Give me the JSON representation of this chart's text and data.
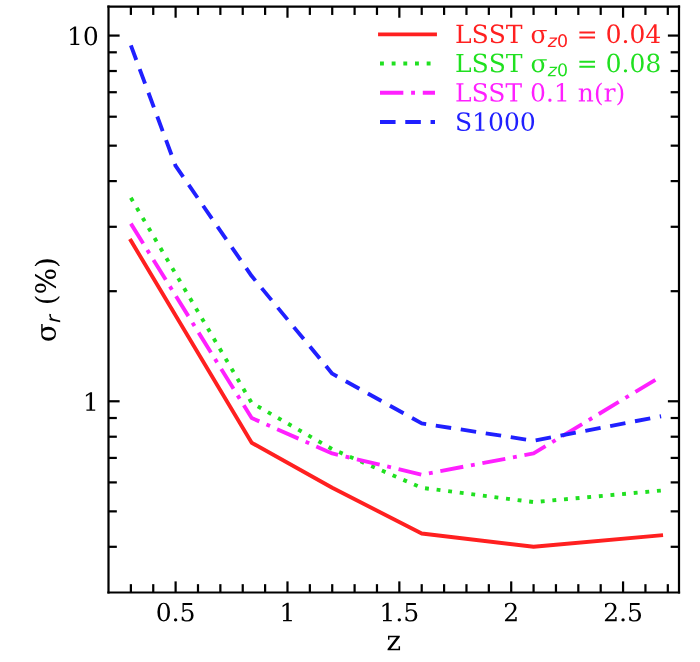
{
  "chart_data": {
    "type": "line",
    "xlabel": "z",
    "ylabel": "σ$_{r}$ (%)",
    "log": "y",
    "legend": "top right",
    "grid": false,
    "xlim": [
      0.2,
      2.75
    ],
    "ylim": [
      0.3,
      12
    ],
    "xticks": [
      {
        "value": 0.3,
        "label": null
      },
      {
        "value": 0.4,
        "label": null
      },
      0.5,
      {
        "value": 0.6,
        "label": null
      },
      {
        "value": 0.7,
        "label": null
      },
      {
        "value": 0.8,
        "label": null
      },
      {
        "value": 0.9,
        "label": null
      },
      1,
      {
        "value": 1.1,
        "label": null
      },
      {
        "value": 1.2,
        "label": null
      },
      {
        "value": 1.3,
        "label": null
      },
      {
        "value": 1.4,
        "label": null
      },
      1.5,
      {
        "value": 1.6,
        "label": null
      },
      {
        "value": 1.7,
        "label": null
      },
      {
        "value": 1.8,
        "label": null
      },
      {
        "value": 1.9,
        "label": null
      },
      2,
      {
        "value": 2.1,
        "label": null
      },
      {
        "value": 2.2,
        "label": null
      },
      {
        "value": 2.3,
        "label": null
      },
      {
        "value": 2.4,
        "label": null
      },
      2.5,
      {
        "value": 2.6,
        "label": null
      },
      {
        "value": 2.7,
        "label": null
      }
    ],
    "yticks": [
      {
        "value": 0.4,
        "label": null
      },
      {
        "value": 0.5,
        "label": null
      },
      {
        "value": 0.6,
        "label": null
      },
      {
        "value": 0.7,
        "label": null
      },
      {
        "value": 0.8,
        "label": null
      },
      {
        "value": 0.9,
        "label": null
      },
      1,
      {
        "value": 2,
        "label": null
      },
      {
        "value": 3,
        "label": null
      },
      {
        "value": 4,
        "label": null
      },
      {
        "value": 5,
        "label": null
      },
      {
        "value": 6,
        "label": null
      },
      {
        "value": 7,
        "label": null
      },
      {
        "value": 8,
        "label": null
      },
      {
        "value": 9,
        "label": null
      },
      10
    ],
    "series": [
      {
        "name": "LSST σ$_{z0}$ = 0.04",
        "color": "#ff2020",
        "line_style": "solid",
        "x": [
          0.3,
          0.84,
          1.2,
          1.6,
          2.1,
          2.67
        ],
        "values": [
          2.75,
          0.77,
          0.58,
          0.435,
          0.4,
          0.43
        ]
      },
      {
        "name": "LSST σ$_{z0}$ = 0.08",
        "color": "#20e020",
        "line_style": "dotted",
        "x": [
          0.3,
          0.84,
          1.2,
          1.6,
          2.1,
          2.67
        ],
        "values": [
          3.6,
          0.99,
          0.74,
          0.58,
          0.53,
          0.57
        ]
      },
      {
        "name": "LSST 0.1 n(r)",
        "color": "#ff20ff",
        "line_style": "dashdot",
        "x": [
          0.3,
          0.84,
          1.2,
          1.6,
          2.1,
          2.67
        ],
        "values": [
          3.06,
          0.9,
          0.72,
          0.63,
          0.72,
          1.17
        ]
      },
      {
        "name": "S1000",
        "color": "#2020ff",
        "line_style": "dashed",
        "x": [
          0.3,
          0.5,
          0.84,
          1.2,
          1.6,
          2.1,
          2.67
        ],
        "values": [
          9.4,
          4.4,
          2.2,
          1.19,
          0.87,
          0.78,
          0.91
        ]
      }
    ]
  }
}
